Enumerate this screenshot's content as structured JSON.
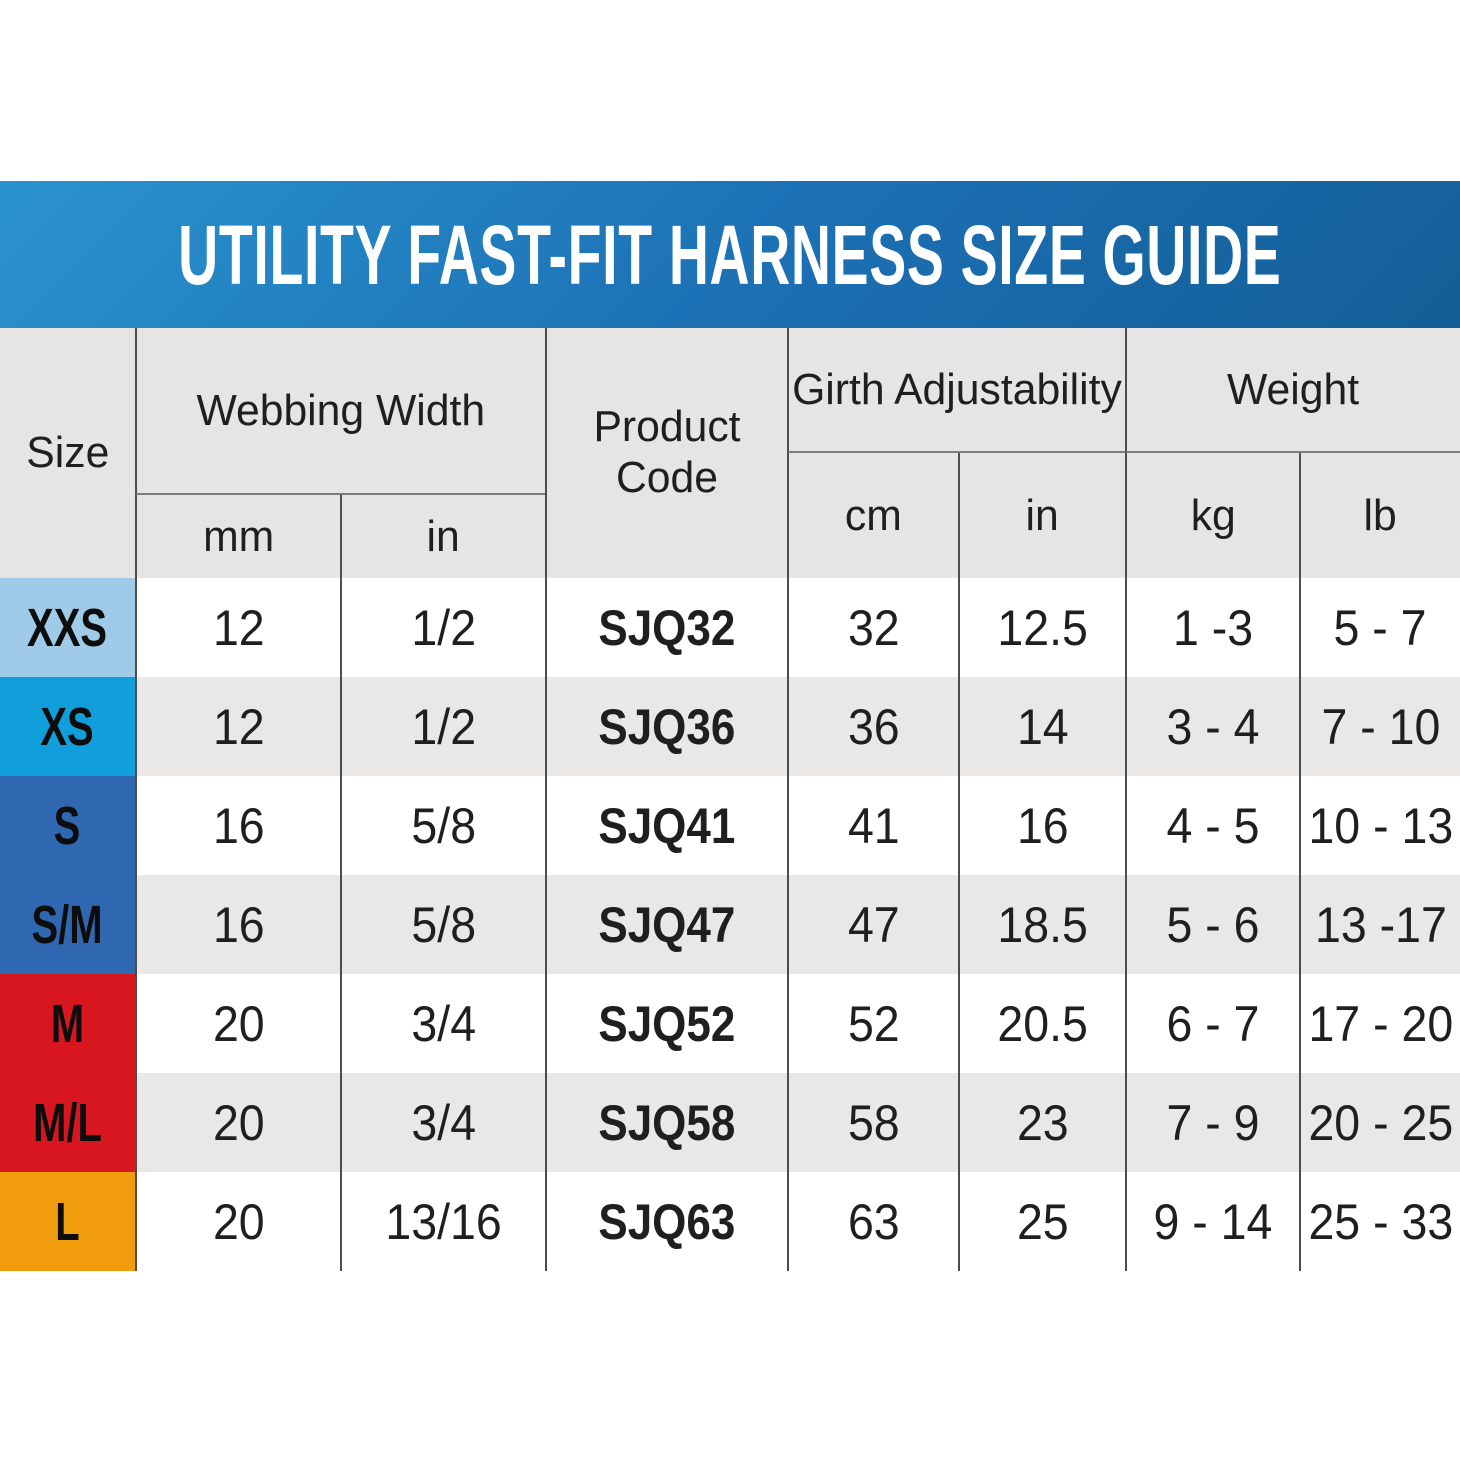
{
  "banner": {
    "title": "UTILITY FAST-FIT HARNESS SIZE GUIDE"
  },
  "header": {
    "size": "Size",
    "webbing_width": "Webbing Width",
    "product_code": "Product Code",
    "girth_adjustability": "Girth Adjustability",
    "weight": "Weight",
    "unit_mm": "mm",
    "unit_in_webbing": "in",
    "unit_cm": "cm",
    "unit_in_girth": "in",
    "unit_kg": "kg",
    "unit_lb": "lb"
  },
  "colors": {
    "banner_start": "#2a93ce",
    "banner_end": "#135e96",
    "header_bg": "#e6e5e3",
    "row_alt_bg": "#e9e8e6",
    "size_xxs": "#9fcbe9",
    "size_xs": "#119fdb",
    "size_s_sm": "#2f68b1",
    "size_m_ml": "#d8161f",
    "size_l": "#f09c0d"
  },
  "chart_data": {
    "type": "table",
    "title": "UTILITY FAST-FIT HARNESS SIZE GUIDE",
    "column_groups": [
      "Size",
      "Webbing Width",
      "Product Code",
      "Girth Adjustability",
      "Weight"
    ],
    "columns": [
      "Size",
      "Webbing Width mm",
      "Webbing Width in",
      "Product Code",
      "Girth Adjustability cm",
      "Girth Adjustability in",
      "Weight kg",
      "Weight lb"
    ],
    "rows": [
      {
        "size": "XXS",
        "webbing_mm": "12",
        "webbing_in": "1/2",
        "product_code": "SJQ32",
        "girth_cm": "32",
        "girth_in": "12.5",
        "weight_kg": "1 -3",
        "weight_lb": "5 - 7"
      },
      {
        "size": "XS",
        "webbing_mm": "12",
        "webbing_in": "1/2",
        "product_code": "SJQ36",
        "girth_cm": "36",
        "girth_in": "14",
        "weight_kg": "3 - 4",
        "weight_lb": "7 - 10"
      },
      {
        "size": "S",
        "webbing_mm": "16",
        "webbing_in": "5/8",
        "product_code": "SJQ41",
        "girth_cm": "41",
        "girth_in": "16",
        "weight_kg": "4 - 5",
        "weight_lb": "10 - 13"
      },
      {
        "size": "S/M",
        "webbing_mm": "16",
        "webbing_in": "5/8",
        "product_code": "SJQ47",
        "girth_cm": "47",
        "girth_in": "18.5",
        "weight_kg": "5 - 6",
        "weight_lb": "13 -17"
      },
      {
        "size": "M",
        "webbing_mm": "20",
        "webbing_in": "3/4",
        "product_code": "SJQ52",
        "girth_cm": "52",
        "girth_in": "20.5",
        "weight_kg": "6 - 7",
        "weight_lb": "17 - 20"
      },
      {
        "size": "M/L",
        "webbing_mm": "20",
        "webbing_in": "3/4",
        "product_code": "SJQ58",
        "girth_cm": "58",
        "girth_in": "23",
        "weight_kg": "7 - 9",
        "weight_lb": "20 - 25"
      },
      {
        "size": "L",
        "webbing_mm": "20",
        "webbing_in": "13/16",
        "product_code": "SJQ63",
        "girth_cm": "63",
        "girth_in": "25",
        "weight_kg": "9 - 14",
        "weight_lb": "25 - 33"
      }
    ]
  }
}
